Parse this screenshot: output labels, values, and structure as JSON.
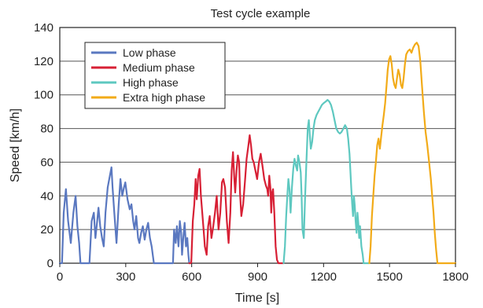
{
  "chart_data": {
    "type": "line",
    "title": "Test cycle example",
    "xlabel": "Time [s]",
    "ylabel": "Speed [km/h]",
    "xlim": [
      0,
      1800
    ],
    "ylim": [
      0,
      140
    ],
    "xticks": [
      "0",
      "300",
      "600",
      "900",
      "1200",
      "1500",
      "1800"
    ],
    "yticks": [
      "0",
      "20",
      "40",
      "60",
      "80",
      "100",
      "120",
      "140"
    ],
    "grid": "horizontal",
    "legend_position": "top-left",
    "series": [
      {
        "name": "Low phase",
        "color": "#5a78c0",
        "points": [
          [
            0,
            0
          ],
          [
            10,
            0
          ],
          [
            18,
            30
          ],
          [
            28,
            44
          ],
          [
            38,
            25
          ],
          [
            50,
            12
          ],
          [
            62,
            30
          ],
          [
            72,
            40
          ],
          [
            80,
            22
          ],
          [
            88,
            12
          ],
          [
            94,
            0
          ],
          [
            135,
            0
          ],
          [
            145,
            25
          ],
          [
            155,
            30
          ],
          [
            162,
            15
          ],
          [
            168,
            22
          ],
          [
            176,
            33
          ],
          [
            184,
            22
          ],
          [
            192,
            15
          ],
          [
            200,
            10
          ],
          [
            208,
            30
          ],
          [
            218,
            45
          ],
          [
            228,
            52
          ],
          [
            235,
            57
          ],
          [
            240,
            45
          ],
          [
            248,
            30
          ],
          [
            258,
            12
          ],
          [
            268,
            35
          ],
          [
            276,
            50
          ],
          [
            284,
            40
          ],
          [
            292,
            45
          ],
          [
            298,
            48
          ],
          [
            308,
            38
          ],
          [
            318,
            32
          ],
          [
            326,
            35
          ],
          [
            334,
            25
          ],
          [
            340,
            20
          ],
          [
            348,
            28
          ],
          [
            356,
            15
          ],
          [
            362,
            12
          ],
          [
            370,
            18
          ],
          [
            378,
            22
          ],
          [
            386,
            14
          ],
          [
            394,
            20
          ],
          [
            402,
            24
          ],
          [
            410,
            15
          ],
          [
            418,
            10
          ],
          [
            428,
            0
          ],
          [
            515,
            0
          ],
          [
            520,
            20
          ],
          [
            527,
            12
          ],
          [
            533,
            22
          ],
          [
            540,
            10
          ],
          [
            546,
            25
          ],
          [
            552,
            18
          ],
          [
            556,
            5
          ],
          [
            562,
            15
          ],
          [
            568,
            24
          ],
          [
            574,
            10
          ],
          [
            580,
            15
          ],
          [
            585,
            5
          ],
          [
            589,
            0
          ]
        ]
      },
      {
        "name": "Medium phase",
        "color": "#d72035",
        "points": [
          [
            589,
            0
          ],
          [
            598,
            0
          ],
          [
            605,
            25
          ],
          [
            612,
            35
          ],
          [
            618,
            50
          ],
          [
            623,
            38
          ],
          [
            630,
            52
          ],
          [
            636,
            56
          ],
          [
            642,
            40
          ],
          [
            648,
            30
          ],
          [
            654,
            20
          ],
          [
            660,
            10
          ],
          [
            668,
            5
          ],
          [
            675,
            22
          ],
          [
            682,
            28
          ],
          [
            690,
            15
          ],
          [
            698,
            22
          ],
          [
            706,
            30
          ],
          [
            714,
            40
          ],
          [
            722,
            20
          ],
          [
            730,
            30
          ],
          [
            738,
            48
          ],
          [
            744,
            50
          ],
          [
            752,
            45
          ],
          [
            760,
            25
          ],
          [
            768,
            12
          ],
          [
            776,
            30
          ],
          [
            782,
            55
          ],
          [
            788,
            66
          ],
          [
            794,
            50
          ],
          [
            798,
            42
          ],
          [
            804,
            55
          ],
          [
            810,
            64
          ],
          [
            816,
            60
          ],
          [
            820,
            42
          ],
          [
            826,
            28
          ],
          [
            834,
            35
          ],
          [
            842,
            48
          ],
          [
            850,
            62
          ],
          [
            858,
            70
          ],
          [
            864,
            76
          ],
          [
            870,
            70
          ],
          [
            876,
            62
          ],
          [
            882,
            60
          ],
          [
            890,
            55
          ],
          [
            898,
            50
          ],
          [
            906,
            60
          ],
          [
            914,
            65
          ],
          [
            922,
            58
          ],
          [
            930,
            50
          ],
          [
            938,
            46
          ],
          [
            944,
            44
          ],
          [
            948,
            40
          ],
          [
            953,
            52
          ],
          [
            958,
            45
          ],
          [
            962,
            30
          ],
          [
            966,
            42
          ],
          [
            970,
            44
          ],
          [
            976,
            30
          ],
          [
            982,
            10
          ],
          [
            988,
            2
          ],
          [
            995,
            0
          ],
          [
            1018,
            0
          ]
        ]
      },
      {
        "name": "High phase",
        "color": "#5ec8c0",
        "points": [
          [
            1018,
            0
          ],
          [
            1024,
            10
          ],
          [
            1030,
            28
          ],
          [
            1036,
            42
          ],
          [
            1040,
            50
          ],
          [
            1045,
            44
          ],
          [
            1050,
            30
          ],
          [
            1056,
            45
          ],
          [
            1062,
            56
          ],
          [
            1068,
            62
          ],
          [
            1074,
            58
          ],
          [
            1080,
            55
          ],
          [
            1084,
            64
          ],
          [
            1090,
            60
          ],
          [
            1096,
            54
          ],
          [
            1100,
            40
          ],
          [
            1104,
            20
          ],
          [
            1110,
            15
          ],
          [
            1116,
            40
          ],
          [
            1122,
            60
          ],
          [
            1128,
            80
          ],
          [
            1133,
            85
          ],
          [
            1138,
            75
          ],
          [
            1142,
            68
          ],
          [
            1148,
            72
          ],
          [
            1154,
            80
          ],
          [
            1160,
            85
          ],
          [
            1168,
            88
          ],
          [
            1176,
            90
          ],
          [
            1184,
            92
          ],
          [
            1192,
            94
          ],
          [
            1200,
            95
          ],
          [
            1210,
            96
          ],
          [
            1218,
            97
          ],
          [
            1226,
            96
          ],
          [
            1234,
            94
          ],
          [
            1242,
            90
          ],
          [
            1250,
            85
          ],
          [
            1258,
            80
          ],
          [
            1266,
            78
          ],
          [
            1274,
            77
          ],
          [
            1282,
            78
          ],
          [
            1290,
            80
          ],
          [
            1298,
            82
          ],
          [
            1306,
            80
          ],
          [
            1312,
            74
          ],
          [
            1318,
            65
          ],
          [
            1322,
            55
          ],
          [
            1326,
            45
          ],
          [
            1330,
            35
          ],
          [
            1334,
            28
          ],
          [
            1338,
            40
          ],
          [
            1342,
            34
          ],
          [
            1346,
            25
          ],
          [
            1350,
            18
          ],
          [
            1354,
            30
          ],
          [
            1358,
            24
          ],
          [
            1362,
            15
          ],
          [
            1366,
            22
          ],
          [
            1372,
            10
          ],
          [
            1378,
            5
          ],
          [
            1382,
            0
          ],
          [
            1408,
            0
          ]
        ]
      },
      {
        "name": "Extra high phase",
        "color": "#f2ab18",
        "points": [
          [
            1408,
            0
          ],
          [
            1414,
            10
          ],
          [
            1420,
            28
          ],
          [
            1426,
            40
          ],
          [
            1432,
            52
          ],
          [
            1438,
            60
          ],
          [
            1444,
            70
          ],
          [
            1450,
            74
          ],
          [
            1456,
            68
          ],
          [
            1462,
            75
          ],
          [
            1468,
            82
          ],
          [
            1474,
            88
          ],
          [
            1480,
            95
          ],
          [
            1486,
            105
          ],
          [
            1492,
            115
          ],
          [
            1498,
            121
          ],
          [
            1504,
            123
          ],
          [
            1510,
            118
          ],
          [
            1516,
            110
          ],
          [
            1522,
            106
          ],
          [
            1528,
            104
          ],
          [
            1534,
            110
          ],
          [
            1540,
            115
          ],
          [
            1546,
            112
          ],
          [
            1552,
            106
          ],
          [
            1558,
            104
          ],
          [
            1564,
            110
          ],
          [
            1570,
            118
          ],
          [
            1576,
            124
          ],
          [
            1584,
            126
          ],
          [
            1592,
            127
          ],
          [
            1600,
            125
          ],
          [
            1608,
            128
          ],
          [
            1616,
            130
          ],
          [
            1624,
            131
          ],
          [
            1632,
            129
          ],
          [
            1640,
            120
          ],
          [
            1648,
            105
          ],
          [
            1656,
            90
          ],
          [
            1664,
            78
          ],
          [
            1672,
            70
          ],
          [
            1680,
            60
          ],
          [
            1688,
            50
          ],
          [
            1694,
            40
          ],
          [
            1700,
            30
          ],
          [
            1706,
            18
          ],
          [
            1712,
            8
          ],
          [
            1718,
            0
          ],
          [
            1800,
            0
          ]
        ]
      }
    ]
  }
}
